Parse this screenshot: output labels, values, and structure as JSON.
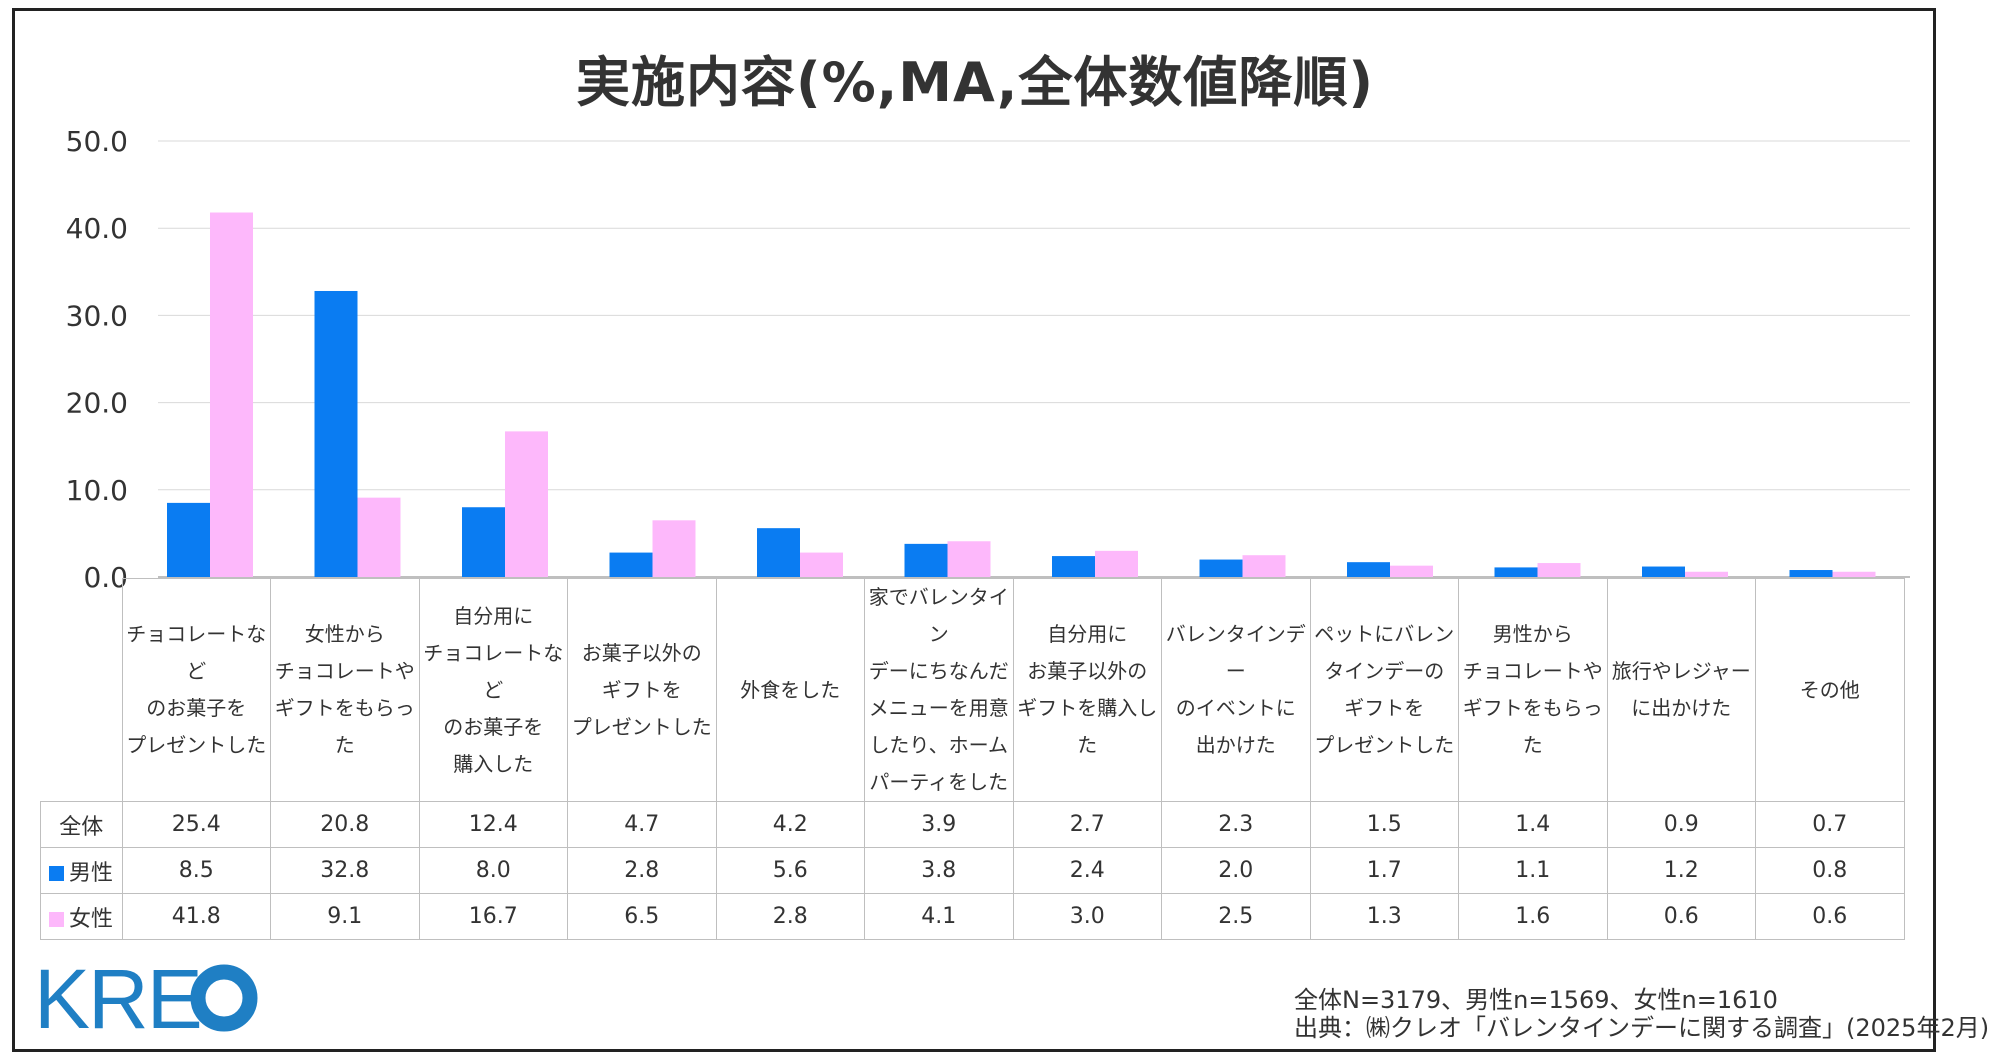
{
  "chart_data": {
    "type": "bar",
    "title": "実施内容(%,MA,全体数値降順)",
    "ylim": [
      0,
      50
    ],
    "yticks": [
      "50.0",
      "40.0",
      "30.0",
      "20.0",
      "10.0",
      "0.0"
    ],
    "categories": [
      [
        "チョコレートなど",
        "のお菓子を",
        "プレゼントした"
      ],
      [
        "女性から",
        "チョコレートや",
        "ギフトをもらった"
      ],
      [
        "自分用に",
        "チョコレートなど",
        "のお菓子を",
        "購入した"
      ],
      [
        "お菓子以外の",
        "ギフトを",
        "プレゼントした"
      ],
      [
        "外食をした"
      ],
      [
        "家でバレンタイン",
        "デーにちなんだ",
        "メニューを用意",
        "したり、ホーム",
        "パーティをした"
      ],
      [
        "自分用に",
        "お菓子以外の",
        "ギフトを購入した"
      ],
      [
        "バレンタインデー",
        "のイベントに",
        "出かけた"
      ],
      [
        "ペットにバレン",
        "タインデーの",
        "ギフトを",
        "プレゼントした"
      ],
      [
        "男性から",
        "チョコレートや",
        "ギフトをもらった"
      ],
      [
        "旅行やレジャー",
        "に出かけた"
      ],
      [
        "その他"
      ]
    ],
    "table": {
      "total": {
        "name": "全体",
        "values": [
          "25.4",
          "20.8",
          "12.4",
          "4.7",
          "4.2",
          "3.9",
          "2.7",
          "2.3",
          "1.5",
          "1.4",
          "0.9",
          "0.7"
        ]
      },
      "male": {
        "name": "男性",
        "values": [
          "8.5",
          "32.8",
          "8.0",
          "2.8",
          "5.6",
          "3.8",
          "2.4",
          "2.0",
          "1.7",
          "1.1",
          "1.2",
          "0.8"
        ]
      },
      "female": {
        "name": "女性",
        "values": [
          "41.8",
          "9.1",
          "16.7",
          "6.5",
          "2.8",
          "4.1",
          "3.0",
          "2.5",
          "1.3",
          "1.6",
          "0.6",
          "0.6"
        ]
      }
    },
    "series": [
      {
        "name": "男性",
        "color": "#0a7cf2",
        "values": [
          8.5,
          32.8,
          8.0,
          2.8,
          5.6,
          3.8,
          2.4,
          2.0,
          1.7,
          1.1,
          1.2,
          0.8
        ]
      },
      {
        "name": "女性",
        "color": "#fdb8fb",
        "values": [
          41.8,
          9.1,
          16.7,
          6.5,
          2.8,
          4.1,
          3.0,
          2.5,
          1.3,
          1.6,
          0.6,
          0.6
        ]
      }
    ],
    "grid": true
  },
  "logo": {
    "text": "KRE",
    "color": "#1f7fc4"
  },
  "footer": {
    "sample": "全体N=3179、男性n=1569、女性n=1610",
    "source": "出典：㈱クレオ「バレンタインデーに関する調査」(2025年2月)"
  }
}
